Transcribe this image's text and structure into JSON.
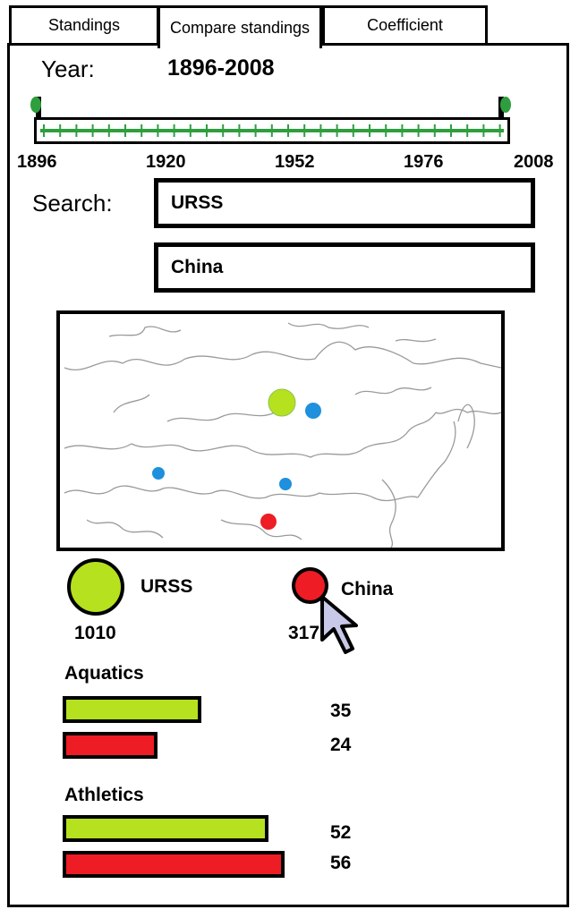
{
  "tabs": [
    {
      "label": "Standings",
      "active": false
    },
    {
      "label": "Compare standings",
      "active": true
    },
    {
      "label": "Coefficient",
      "active": false
    }
  ],
  "year": {
    "label": "Year:",
    "value": "1896-2008"
  },
  "slider": {
    "start_year": 1896,
    "end_year": 2008,
    "selected_range": [
      1896,
      2008
    ],
    "tick_labels": [
      "1896",
      "1920",
      "1952",
      "1976",
      "2008"
    ]
  },
  "search": {
    "label": "Search:",
    "country1": "URSS",
    "country2": "China"
  },
  "colors": {
    "country1": "#b5e11f",
    "country2": "#ee1c24",
    "marker_extra": "#1e90dd",
    "slider_green": "#2e9e3e"
  },
  "legend": {
    "country1": {
      "name": "URSS",
      "total": "1010"
    },
    "country2": {
      "name": "China",
      "total": "317"
    }
  },
  "chart_data": [
    {
      "type": "bar",
      "title": "Aquatics",
      "categories": [
        "URSS",
        "China"
      ],
      "values": [
        35,
        24
      ],
      "value_labels": [
        "35",
        "24"
      ]
    },
    {
      "type": "bar",
      "title": "Athletics",
      "categories": [
        "URSS",
        "China"
      ],
      "values": [
        52,
        56
      ],
      "value_labels": [
        "52",
        "56"
      ]
    }
  ]
}
